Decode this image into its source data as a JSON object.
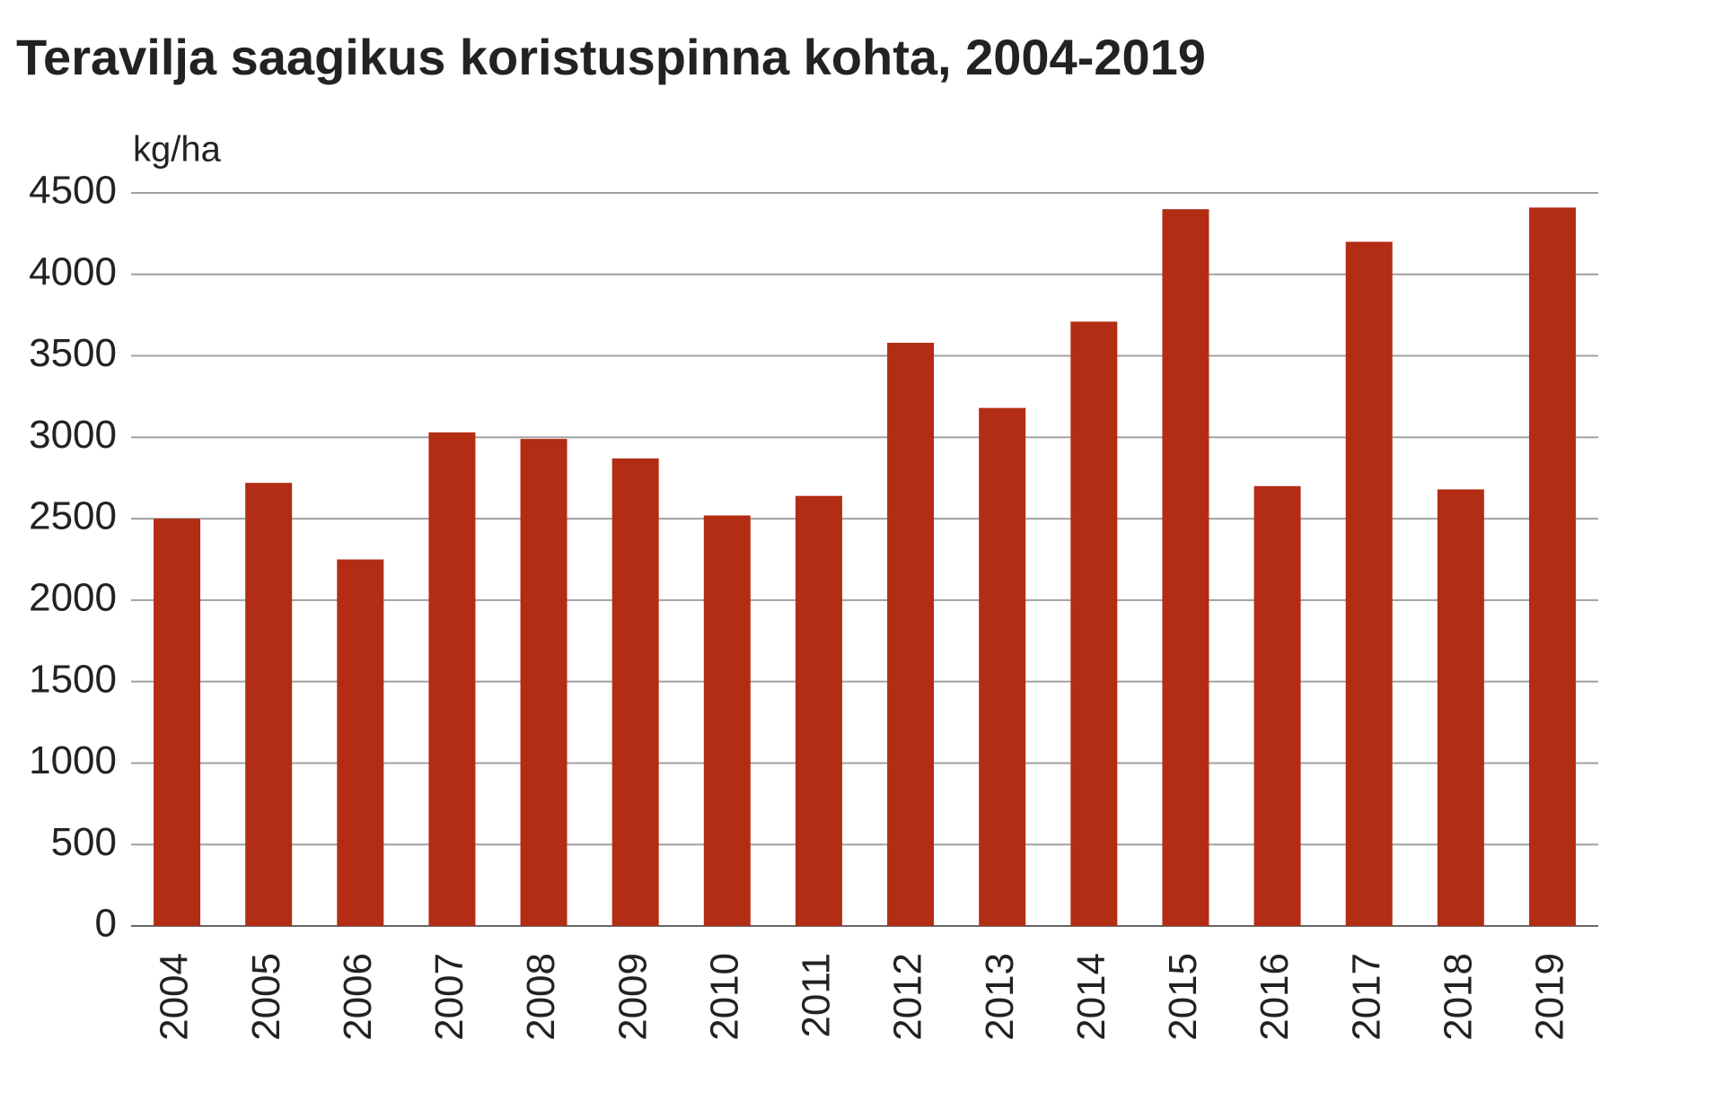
{
  "chart_data": {
    "type": "bar",
    "title": "Teravilja saagikus koristuspinna kohta, 2004-2019",
    "y_label": "kg/ha",
    "categories": [
      "2004",
      "2005",
      "2006",
      "2007",
      "2008",
      "2009",
      "2010",
      "2011",
      "2012",
      "2013",
      "2014",
      "2015",
      "2016",
      "2017",
      "2018",
      "2019"
    ],
    "values": [
      2500,
      2720,
      2250,
      3030,
      2990,
      2870,
      2520,
      2640,
      3580,
      3180,
      3710,
      4400,
      2700,
      4200,
      2680,
      4410
    ],
    "color": "#b22d14",
    "ylim": [
      0,
      4500
    ],
    "yticks": [
      0,
      500,
      1000,
      1500,
      2000,
      2500,
      3000,
      3500,
      4000,
      4500
    ],
    "grid": true
  }
}
